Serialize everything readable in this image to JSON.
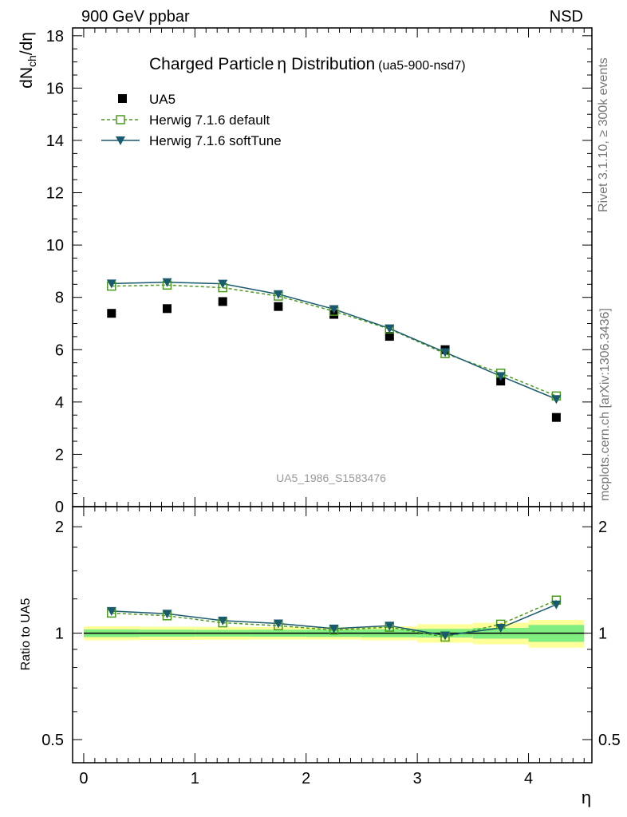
{
  "header": {
    "left": "900 GeV ppbar",
    "right": "NSD"
  },
  "side_text": {
    "rivet": "Rivet 3.1.10, ≥ 300k events",
    "mcplots": "mcplots.cern.ch [arXiv:1306.3436]"
  },
  "watermark": "UA5_1986_S1583476",
  "colors": {
    "data": "#000000",
    "default": "#4a9a1e",
    "softtune": "#1a5a6e",
    "band_inner": "#80ee80",
    "band_outer": "#ffff99"
  },
  "chart_data": [
    {
      "type": "scatter",
      "panel": "main",
      "title": "Charged Particle",
      "title_symbol": "η",
      "title_tail": "Distribution",
      "title_sub": "(ua5-900-nsd7)",
      "ylabel_main": "dN",
      "ylabel_sub": "ch",
      "ylabel_tail": "/dη",
      "ylim": [
        0,
        18.3
      ],
      "xlim": [
        -0.1,
        4.57
      ],
      "yticks": [
        "0",
        "2",
        "4",
        "6",
        "8",
        "10",
        "12",
        "14",
        "16",
        "18"
      ],
      "ytick_values": [
        0,
        2,
        4,
        6,
        8,
        10,
        12,
        14,
        16,
        18
      ],
      "legend_position": "top-left",
      "x": [
        0.25,
        0.75,
        1.25,
        1.75,
        2.25,
        2.75,
        3.25,
        3.75,
        4.25
      ],
      "series": [
        {
          "name": "UA5",
          "marker": "square-filled",
          "values": [
            7.39,
            7.57,
            7.84,
            7.65,
            7.35,
            6.51,
            6.0,
            4.8,
            3.41
          ]
        },
        {
          "name": "Herwig 7.1.6 default",
          "marker": "square-open",
          "line": "dashed",
          "values": [
            8.43,
            8.47,
            8.37,
            8.05,
            7.47,
            6.79,
            5.85,
            5.1,
            4.23
          ]
        },
        {
          "name": "Herwig 7.1.6 softTune",
          "marker": "triangle-down",
          "line": "solid",
          "values": [
            8.53,
            8.58,
            8.52,
            8.12,
            7.55,
            6.81,
            5.9,
            4.99,
            4.11
          ]
        }
      ]
    },
    {
      "type": "line",
      "panel": "ratio",
      "ylabel": "Ratio to UA5",
      "xlabel": "η",
      "ylim": [
        0.43,
        2.28
      ],
      "log_y": true,
      "xticks": [
        "0",
        "1",
        "2",
        "3",
        "4"
      ],
      "xtick_values": [
        0,
        1,
        2,
        3,
        4
      ],
      "yticks": [
        "0.5",
        "1",
        "2"
      ],
      "ytick_values": [
        0.5,
        1,
        2
      ],
      "x": [
        0.25,
        0.75,
        1.25,
        1.75,
        2.25,
        2.75,
        3.25,
        3.75,
        4.25
      ],
      "bins": [
        [
          0,
          0.5
        ],
        [
          0.5,
          1
        ],
        [
          1,
          1.5
        ],
        [
          1.5,
          2
        ],
        [
          2,
          2.5
        ],
        [
          2.5,
          3
        ],
        [
          3,
          3.5
        ],
        [
          3.5,
          4
        ],
        [
          4,
          4.5
        ]
      ],
      "band_inner": [
        [
          0.975,
          1.025
        ],
        [
          0.977,
          1.023
        ],
        [
          0.978,
          1.022
        ],
        [
          0.977,
          1.023
        ],
        [
          0.976,
          1.024
        ],
        [
          0.974,
          1.026
        ],
        [
          0.972,
          1.028
        ],
        [
          0.965,
          1.035
        ],
        [
          0.945,
          1.055
        ]
      ],
      "band_outer": [
        [
          0.955,
          1.045
        ],
        [
          0.957,
          1.043
        ],
        [
          0.958,
          1.042
        ],
        [
          0.96,
          1.04
        ],
        [
          0.96,
          1.04
        ],
        [
          0.955,
          1.045
        ],
        [
          0.94,
          1.06
        ],
        [
          0.93,
          1.07
        ],
        [
          0.91,
          1.09
        ]
      ],
      "series": [
        {
          "name": "Herwig 7.1.6 default",
          "marker": "square-open",
          "line": "dashed",
          "values": [
            1.14,
            1.12,
            1.07,
            1.05,
            1.02,
            1.04,
            0.975,
            1.06,
            1.24
          ]
        },
        {
          "name": "Herwig 7.1.6 softTune",
          "marker": "triangle-down",
          "line": "solid",
          "values": [
            1.155,
            1.135,
            1.085,
            1.065,
            1.03,
            1.05,
            0.985,
            1.035,
            1.205
          ]
        }
      ]
    }
  ]
}
